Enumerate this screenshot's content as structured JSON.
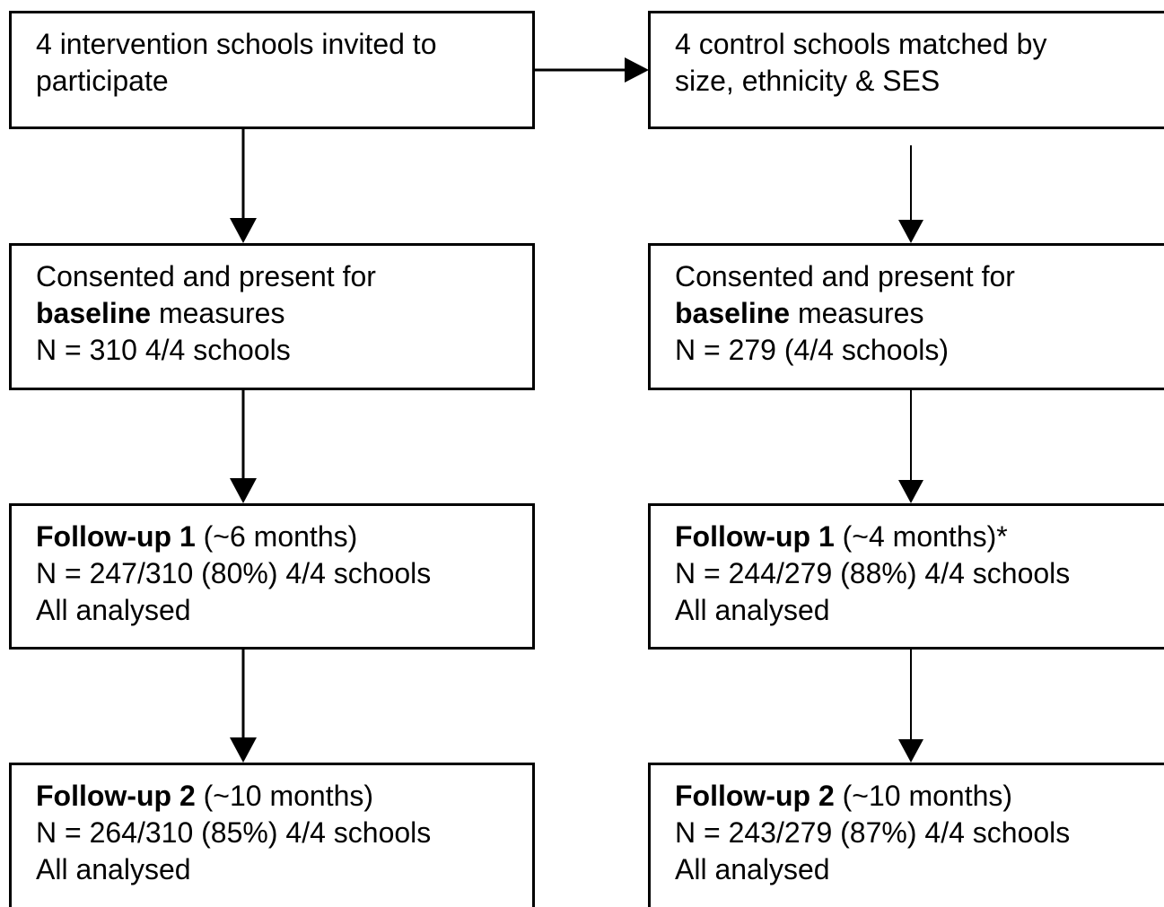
{
  "intervention": {
    "invited": {
      "line1": "4 intervention schools invited to",
      "line2": "participate"
    },
    "baseline": {
      "line1": "Consented and present for",
      "line2_bold": "baseline",
      "line2_rest": " measures",
      "line3": "N = 310 4/4 schools"
    },
    "followup1": {
      "bold": "Follow-up 1",
      "rest": " (~6 months)",
      "line2": "N = 247/310 (80%) 4/4 schools",
      "line3": "All analysed"
    },
    "followup2": {
      "bold": "Follow-up 2",
      "rest": " (~10 months)",
      "line2": "N = 264/310 (85%) 4/4 schools",
      "line3": "All analysed"
    }
  },
  "control": {
    "matched": {
      "line1": "4 control schools matched by",
      "line2": "size, ethnicity & SES"
    },
    "baseline": {
      "line1": "Consented and present for",
      "line2_bold": "baseline",
      "line2_rest": " measures",
      "line3": "N = 279 (4/4 schools)"
    },
    "followup1": {
      "bold": "Follow-up 1",
      "rest": " (~4 months)*",
      "line2": "N = 244/279 (88%) 4/4 schools",
      "line3": "All analysed"
    },
    "followup2": {
      "bold": "Follow-up 2",
      "rest": " (~10 months)",
      "line2": "N = 243/279 (87%) 4/4 schools",
      "line3": "All analysed"
    }
  },
  "colors": {
    "border": "#000000",
    "background": "#ffffff",
    "text": "#000000"
  }
}
